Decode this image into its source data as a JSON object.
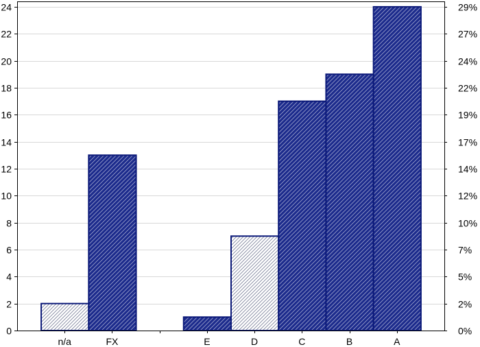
{
  "chart_data": {
    "type": "bar",
    "categories": [
      "n/a",
      "FX",
      "",
      "E",
      "D",
      "C",
      "B",
      "A"
    ],
    "values": [
      2,
      13,
      0,
      1,
      7,
      17,
      19,
      24
    ],
    "styles": [
      "light",
      "dark",
      "none",
      "dark",
      "light",
      "dark",
      "dark",
      "dark"
    ],
    "ylim": [
      0,
      24.4
    ],
    "yticks": [
      0,
      2,
      4,
      6,
      8,
      10,
      12,
      14,
      16,
      18,
      20,
      22,
      24
    ],
    "right_axis": {
      "ticks": [
        {
          "value": 0,
          "label": "0%"
        },
        {
          "value": 2,
          "label": "2%"
        },
        {
          "value": 4,
          "label": "5%"
        },
        {
          "value": 6,
          "label": "7%"
        },
        {
          "value": 8,
          "label": "10%"
        },
        {
          "value": 10,
          "label": "12%"
        },
        {
          "value": 12,
          "label": "14%"
        },
        {
          "value": 14,
          "label": "17%"
        },
        {
          "value": 16,
          "label": "19%"
        },
        {
          "value": 18,
          "label": "22%"
        },
        {
          "value": 20,
          "label": "24%"
        },
        {
          "value": 22,
          "label": "27%"
        },
        {
          "value": 24,
          "label": "29%"
        }
      ]
    },
    "grid": true,
    "legend": "none",
    "title": "",
    "xlabel": "",
    "ylabel": "",
    "colors": {
      "dark_fill": "#1c2b8c",
      "bar_edge": "#0a1878",
      "light_hatch": "#8a8fa8",
      "grid": "#d8d8d8",
      "axis": "#000000"
    }
  }
}
